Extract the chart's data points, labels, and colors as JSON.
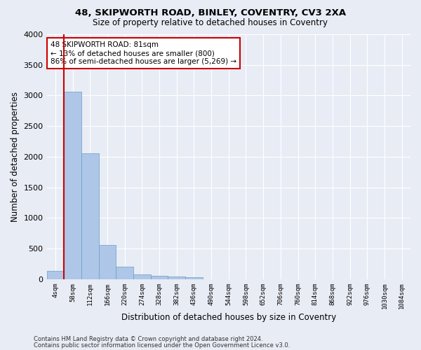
{
  "title1": "48, SKIPWORTH ROAD, BINLEY, COVENTRY, CV3 2XA",
  "title2": "Size of property relative to detached houses in Coventry",
  "xlabel": "Distribution of detached houses by size in Coventry",
  "ylabel": "Number of detached properties",
  "bar_categories": [
    "4sqm",
    "58sqm",
    "112sqm",
    "166sqm",
    "220sqm",
    "274sqm",
    "328sqm",
    "382sqm",
    "436sqm",
    "490sqm",
    "544sqm",
    "598sqm",
    "652sqm",
    "706sqm",
    "760sqm",
    "814sqm",
    "868sqm",
    "922sqm",
    "976sqm",
    "1030sqm",
    "1084sqm"
  ],
  "bar_values": [
    140,
    3060,
    2060,
    560,
    200,
    80,
    60,
    45,
    35,
    0,
    0,
    0,
    0,
    0,
    0,
    0,
    0,
    0,
    0,
    0,
    0
  ],
  "bar_color": "#aec6e8",
  "bar_edge_color": "#6a9ec5",
  "background_color": "#e8ecf5",
  "grid_color": "#ffffff",
  "vline_color": "#cc0000",
  "annotation_text": "48 SKIPWORTH ROAD: 81sqm\n← 13% of detached houses are smaller (800)\n86% of semi-detached houses are larger (5,269) →",
  "annotation_box_color": "#ffffff",
  "annotation_box_edge_color": "#cc0000",
  "ylim": [
    0,
    4000
  ],
  "yticks": [
    0,
    500,
    1000,
    1500,
    2000,
    2500,
    3000,
    3500,
    4000
  ],
  "footnote1": "Contains HM Land Registry data © Crown copyright and database right 2024.",
  "footnote2": "Contains public sector information licensed under the Open Government Licence v3.0."
}
